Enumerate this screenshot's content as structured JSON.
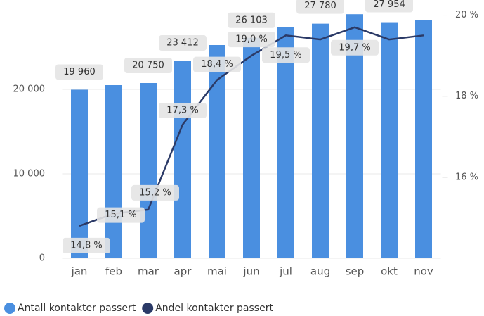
{
  "chart_data": {
    "type": "bar-line",
    "categories": [
      "jan",
      "feb",
      "mar",
      "apr",
      "mai",
      "jun",
      "jul",
      "aug",
      "sep",
      "okt",
      "nov"
    ],
    "series": [
      {
        "name": "Antall kontakter passert",
        "color": "#4a8fe0",
        "type": "bar",
        "values": [
          19960,
          20500,
          20750,
          23412,
          25250,
          26103,
          27400,
          27780,
          28900,
          27954,
          28200
        ],
        "value_labels": [
          "19 960",
          null,
          "20 750",
          "23 412",
          null,
          "26 103",
          null,
          "27 780",
          null,
          "27 954",
          null
        ]
      },
      {
        "name": "Andel kontakter passert",
        "color": "#2b3a67",
        "type": "line",
        "axis": "y2",
        "values": [
          14.8,
          15.1,
          15.2,
          17.3,
          18.4,
          19.0,
          19.5,
          19.4,
          19.7,
          19.4,
          19.5
        ],
        "value_labels": [
          "14,8 %",
          "15,1 %",
          "15,2 %",
          "17,3 %",
          "18,4 %",
          "19,0 %",
          "19,5 %",
          null,
          "19,7 %",
          null,
          null
        ]
      }
    ],
    "ylim": [
      0,
      29750
    ],
    "yticks": [
      0,
      {
        "value": 10000,
        "label": "10 000"
      },
      {
        "value": 20000,
        "label": "20 000"
      }
    ],
    "y2lim": [
      14,
      20.2
    ],
    "y2ticks": [
      {
        "value": 16,
        "label": "16 %"
      },
      {
        "value": 18,
        "label": "18 %"
      },
      {
        "value": 20,
        "label": "20 %"
      }
    ],
    "grid": true
  }
}
